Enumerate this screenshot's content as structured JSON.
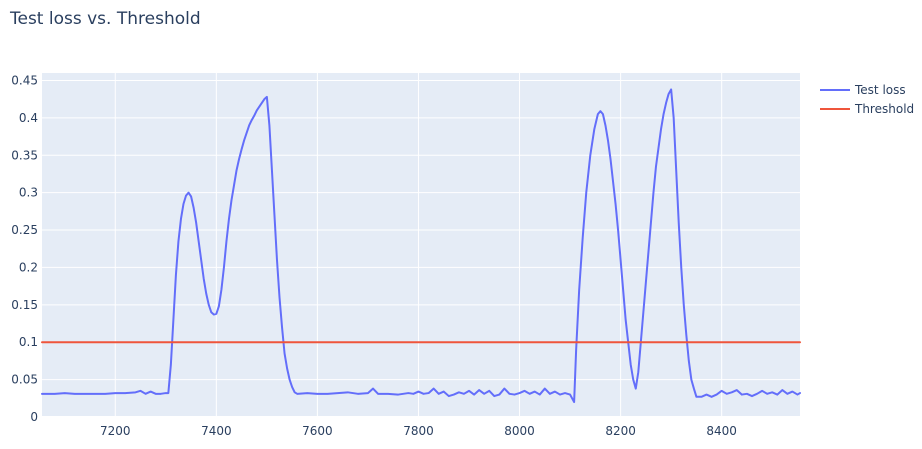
{
  "chart_data": {
    "type": "line",
    "title": "Test loss vs. Threshold",
    "xlabel": "",
    "ylabel": "",
    "xlim": [
      7055,
      8555
    ],
    "ylim": [
      0,
      0.46
    ],
    "x_ticks": [
      7200,
      7400,
      7600,
      7800,
      8000,
      8200,
      8400
    ],
    "y_ticks": [
      0,
      0.05,
      0.1,
      0.15,
      0.2,
      0.25,
      0.3,
      0.35,
      0.4,
      0.45
    ],
    "y_tick_labels": [
      "0",
      "0.05",
      "0.1",
      "0.15",
      "0.2",
      "0.25",
      "0.3",
      "0.35",
      "0.4",
      "0.45"
    ],
    "grid": true,
    "legend_position": "top-right",
    "series": [
      {
        "name": "Test loss",
        "color": "#636efa",
        "points": [
          [
            7055,
            0.031
          ],
          [
            7080,
            0.031
          ],
          [
            7100,
            0.032
          ],
          [
            7120,
            0.031
          ],
          [
            7140,
            0.031
          ],
          [
            7160,
            0.031
          ],
          [
            7180,
            0.031
          ],
          [
            7200,
            0.032
          ],
          [
            7220,
            0.032
          ],
          [
            7240,
            0.033
          ],
          [
            7250,
            0.035
          ],
          [
            7260,
            0.031
          ],
          [
            7270,
            0.034
          ],
          [
            7280,
            0.031
          ],
          [
            7290,
            0.031
          ],
          [
            7300,
            0.032
          ],
          [
            7305,
            0.032
          ],
          [
            7310,
            0.07
          ],
          [
            7315,
            0.13
          ],
          [
            7320,
            0.19
          ],
          [
            7325,
            0.235
          ],
          [
            7330,
            0.265
          ],
          [
            7335,
            0.285
          ],
          [
            7340,
            0.296
          ],
          [
            7345,
            0.3
          ],
          [
            7350,
            0.295
          ],
          [
            7355,
            0.28
          ],
          [
            7360,
            0.26
          ],
          [
            7365,
            0.235
          ],
          [
            7370,
            0.21
          ],
          [
            7375,
            0.185
          ],
          [
            7380,
            0.165
          ],
          [
            7385,
            0.15
          ],
          [
            7390,
            0.14
          ],
          [
            7395,
            0.137
          ],
          [
            7400,
            0.138
          ],
          [
            7405,
            0.148
          ],
          [
            7410,
            0.17
          ],
          [
            7415,
            0.2
          ],
          [
            7420,
            0.235
          ],
          [
            7425,
            0.265
          ],
          [
            7430,
            0.29
          ],
          [
            7435,
            0.31
          ],
          [
            7440,
            0.33
          ],
          [
            7445,
            0.345
          ],
          [
            7450,
            0.358
          ],
          [
            7455,
            0.37
          ],
          [
            7460,
            0.38
          ],
          [
            7465,
            0.39
          ],
          [
            7470,
            0.397
          ],
          [
            7475,
            0.403
          ],
          [
            7480,
            0.41
          ],
          [
            7485,
            0.415
          ],
          [
            7490,
            0.42
          ],
          [
            7495,
            0.425
          ],
          [
            7500,
            0.428
          ],
          [
            7505,
            0.39
          ],
          [
            7510,
            0.33
          ],
          [
            7515,
            0.27
          ],
          [
            7520,
            0.21
          ],
          [
            7525,
            0.16
          ],
          [
            7530,
            0.12
          ],
          [
            7535,
            0.085
          ],
          [
            7540,
            0.065
          ],
          [
            7545,
            0.05
          ],
          [
            7550,
            0.04
          ],
          [
            7555,
            0.033
          ],
          [
            7560,
            0.031
          ],
          [
            7580,
            0.032
          ],
          [
            7600,
            0.031
          ],
          [
            7620,
            0.031
          ],
          [
            7640,
            0.032
          ],
          [
            7660,
            0.033
          ],
          [
            7680,
            0.031
          ],
          [
            7700,
            0.032
          ],
          [
            7710,
            0.038
          ],
          [
            7720,
            0.031
          ],
          [
            7740,
            0.031
          ],
          [
            7760,
            0.03
          ],
          [
            7780,
            0.032
          ],
          [
            7790,
            0.031
          ],
          [
            7800,
            0.034
          ],
          [
            7810,
            0.031
          ],
          [
            7820,
            0.032
          ],
          [
            7830,
            0.038
          ],
          [
            7840,
            0.031
          ],
          [
            7850,
            0.034
          ],
          [
            7860,
            0.028
          ],
          [
            7870,
            0.03
          ],
          [
            7880,
            0.033
          ],
          [
            7890,
            0.031
          ],
          [
            7900,
            0.035
          ],
          [
            7910,
            0.03
          ],
          [
            7920,
            0.036
          ],
          [
            7930,
            0.031
          ],
          [
            7940,
            0.035
          ],
          [
            7950,
            0.028
          ],
          [
            7960,
            0.03
          ],
          [
            7970,
            0.038
          ],
          [
            7980,
            0.031
          ],
          [
            7990,
            0.03
          ],
          [
            8000,
            0.032
          ],
          [
            8010,
            0.035
          ],
          [
            8020,
            0.031
          ],
          [
            8030,
            0.034
          ],
          [
            8040,
            0.03
          ],
          [
            8050,
            0.038
          ],
          [
            8060,
            0.031
          ],
          [
            8070,
            0.034
          ],
          [
            8080,
            0.03
          ],
          [
            8090,
            0.032
          ],
          [
            8100,
            0.03
          ],
          [
            8108,
            0.02
          ],
          [
            8112,
            0.09
          ],
          [
            8118,
            0.17
          ],
          [
            8125,
            0.24
          ],
          [
            8132,
            0.3
          ],
          [
            8140,
            0.35
          ],
          [
            8148,
            0.385
          ],
          [
            8155,
            0.405
          ],
          [
            8160,
            0.409
          ],
          [
            8165,
            0.405
          ],
          [
            8170,
            0.39
          ],
          [
            8175,
            0.37
          ],
          [
            8180,
            0.345
          ],
          [
            8185,
            0.315
          ],
          [
            8190,
            0.285
          ],
          [
            8195,
            0.25
          ],
          [
            8200,
            0.21
          ],
          [
            8205,
            0.17
          ],
          [
            8210,
            0.13
          ],
          [
            8215,
            0.1
          ],
          [
            8220,
            0.07
          ],
          [
            8225,
            0.05
          ],
          [
            8230,
            0.038
          ],
          [
            8235,
            0.06
          ],
          [
            8240,
            0.1
          ],
          [
            8245,
            0.14
          ],
          [
            8250,
            0.18
          ],
          [
            8255,
            0.22
          ],
          [
            8260,
            0.26
          ],
          [
            8265,
            0.3
          ],
          [
            8270,
            0.335
          ],
          [
            8275,
            0.36
          ],
          [
            8280,
            0.385
          ],
          [
            8285,
            0.405
          ],
          [
            8290,
            0.42
          ],
          [
            8295,
            0.432
          ],
          [
            8300,
            0.438
          ],
          [
            8305,
            0.4
          ],
          [
            8310,
            0.33
          ],
          [
            8315,
            0.26
          ],
          [
            8320,
            0.2
          ],
          [
            8325,
            0.15
          ],
          [
            8330,
            0.11
          ],
          [
            8335,
            0.075
          ],
          [
            8340,
            0.05
          ],
          [
            8345,
            0.038
          ],
          [
            8350,
            0.027
          ],
          [
            8360,
            0.027
          ],
          [
            8370,
            0.03
          ],
          [
            8380,
            0.027
          ],
          [
            8390,
            0.03
          ],
          [
            8400,
            0.035
          ],
          [
            8410,
            0.031
          ],
          [
            8420,
            0.033
          ],
          [
            8430,
            0.036
          ],
          [
            8440,
            0.03
          ],
          [
            8450,
            0.031
          ],
          [
            8460,
            0.028
          ],
          [
            8470,
            0.031
          ],
          [
            8480,
            0.035
          ],
          [
            8490,
            0.031
          ],
          [
            8500,
            0.033
          ],
          [
            8510,
            0.03
          ],
          [
            8520,
            0.036
          ],
          [
            8530,
            0.031
          ],
          [
            8540,
            0.034
          ],
          [
            8550,
            0.03
          ],
          [
            8555,
            0.032
          ]
        ]
      },
      {
        "name": "Threshold",
        "color": "#ef553b",
        "points": [
          [
            7055,
            0.1
          ],
          [
            8555,
            0.1
          ]
        ]
      }
    ]
  }
}
